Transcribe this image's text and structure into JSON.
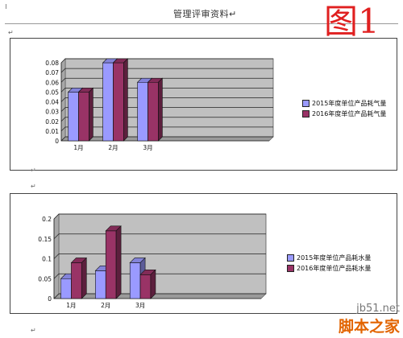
{
  "header": {
    "title": "管理评审资料↵"
  },
  "figure_label": "图1",
  "para_mark": "↵",
  "colors": {
    "series_2015": "#9a9aff",
    "series_2016": "#993366",
    "plot_bg": "#c0c0c0"
  },
  "watermark": {
    "url": "jb51.net",
    "name": "脚本之家"
  },
  "chart_data": [
    {
      "type": "bar",
      "categories": [
        "1月",
        "2月",
        "3月"
      ],
      "series": [
        {
          "name": "2015年度单位产品耗气量",
          "values": [
            0.05,
            0.08,
            0.06
          ]
        },
        {
          "name": "2016年度单位产品耗气量",
          "values": [
            0.05,
            0.08,
            0.06
          ]
        }
      ],
      "ylim": [
        0,
        0.08
      ],
      "yticks": [
        "0",
        "0.01",
        "0.02",
        "0.03",
        "0.04",
        "0.05",
        "0.06",
        "0.07",
        "0.08"
      ],
      "grid": true,
      "legend": "right",
      "slots": 6
    },
    {
      "type": "bar",
      "categories": [
        "1月",
        "2月",
        "3月"
      ],
      "series": [
        {
          "name": "2015年度单位产品耗水量",
          "values": [
            0.05,
            0.07,
            0.09
          ]
        },
        {
          "name": "2016年度单位产品耗水量",
          "values": [
            0.09,
            0.17,
            0.06
          ]
        }
      ],
      "ylim": [
        0,
        0.2
      ],
      "yticks": [
        "0",
        "0.05",
        "0.1",
        "0.15",
        "0.2"
      ],
      "grid": true,
      "legend": "right",
      "slots": 6
    }
  ]
}
